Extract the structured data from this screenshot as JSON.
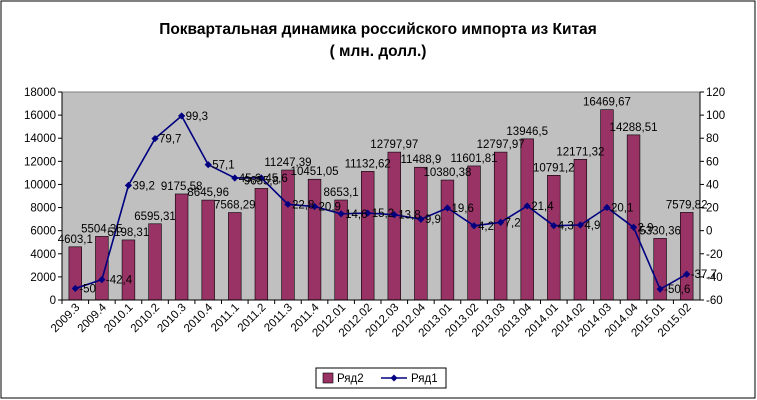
{
  "title_line1": "Поквартальная динамика российского импорта из Китая",
  "title_line2": "( млн. долл.)",
  "chart_data": {
    "type": "bar",
    "categories": [
      "2009.3",
      "2009.4",
      "2010.1",
      "2010.2",
      "2010.3",
      "2010.4",
      "2011.1",
      "2011.2",
      "2011.3",
      "2011.4",
      "2012.01",
      "2012.02",
      "2012.03",
      "2012.04",
      "2013.01",
      "2013.02",
      "2013.03",
      "2013.04",
      "2014.01",
      "2014.02",
      "2014.03",
      "2014.04",
      "2015.01",
      "2015.02"
    ],
    "series": [
      {
        "name": "Ряд2",
        "type": "bar",
        "axis": "left",
        "color": "#993366",
        "values": [
          4603.1,
          5504.35,
          5198.31,
          6595.31,
          9175.58,
          8645.96,
          7568.29,
          9655.8,
          11247.39,
          10451.05,
          8653.1,
          11132.62,
          12797.97,
          11488.9,
          10380.38,
          11601.81,
          12797.97,
          13946.5,
          10791.2,
          12171.32,
          16469.67,
          14288.51,
          5330.36,
          7579.82
        ],
        "labels": [
          "4603,1",
          "5504,35",
          "5198,31",
          "6595,31",
          "9175,58",
          "8645,96",
          "7568,29",
          "9655,8",
          "11247,39",
          "10451,05",
          "8653,1",
          "11132,62",
          "12797,97",
          "11488,9",
          "10380,38",
          "11601,81",
          "12797,97",
          "13946,5",
          "10791,2",
          "12171,32",
          "16469,67",
          "14288,51",
          "5330,36",
          "7579,82"
        ]
      },
      {
        "name": "Ряд1",
        "type": "line",
        "axis": "right",
        "color": "#000080",
        "values": [
          -50,
          -42.4,
          39.2,
          79.7,
          99.3,
          57.1,
          45.6,
          45.6,
          22.8,
          20.9,
          14.6,
          15.2,
          13.8,
          9.9,
          19.6,
          4.2,
          7.2,
          21.4,
          4.3,
          4.9,
          20.1,
          2.9,
          -50.6,
          -37.7
        ],
        "labels": [
          "-50",
          "-42,4",
          "39,2",
          "79,7",
          "99,3",
          "57,1",
          "45,6",
          "45,6",
          "22,8",
          "20,9",
          "14,6",
          "15,2",
          "13,8",
          "9,9",
          "19,6",
          "4,2",
          "7,2",
          "21,4",
          "4,3",
          "4,9",
          "20,1",
          "2,9",
          "-50,6",
          "-37,7"
        ]
      }
    ],
    "y_left": {
      "min": 0,
      "max": 18000,
      "step": 2000
    },
    "y_right": {
      "min": -60,
      "max": 120,
      "step": 20
    },
    "grid": false,
    "plot_background": "#c0c0c0",
    "legend_position": "bottom"
  }
}
